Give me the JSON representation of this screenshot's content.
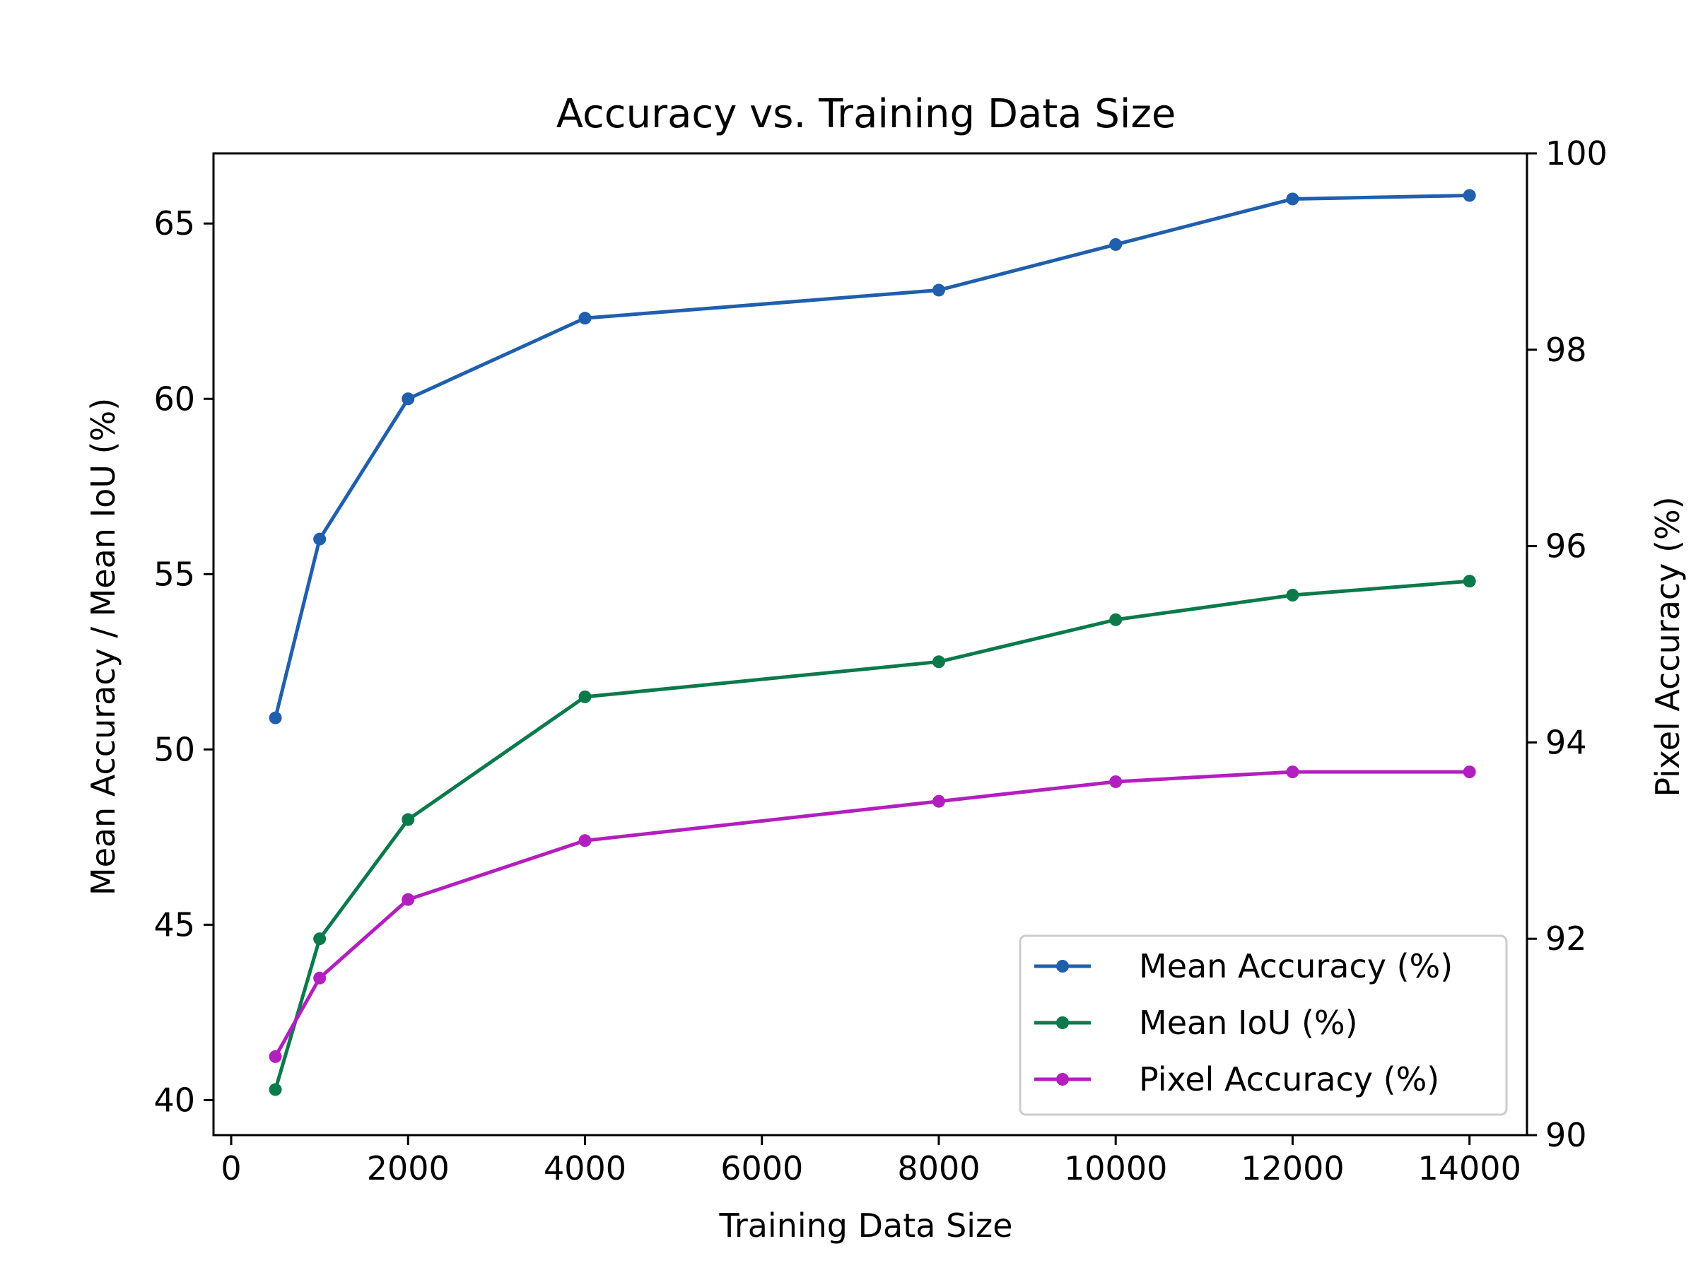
{
  "chart_data": {
    "type": "line",
    "title": "Accuracy vs. Training Data Size",
    "xlabel": "Training Data Size",
    "ylabel": "Mean Accuracy / Mean IoU (%)",
    "y2label": "Pixel Accuracy (%)",
    "xlim": [
      -200,
      14650
    ],
    "ylim": [
      39.0,
      67.0
    ],
    "y2lim": [
      90,
      100
    ],
    "xticks": [
      0,
      2000,
      4000,
      6000,
      8000,
      10000,
      12000,
      14000
    ],
    "yticks": [
      40,
      45,
      50,
      55,
      60,
      65
    ],
    "y2ticks": [
      90,
      92,
      94,
      96,
      98,
      100
    ],
    "grid": false,
    "legend_position": "lower-right",
    "x": [
      500,
      1000,
      2000,
      4000,
      8000,
      10000,
      12000,
      14000
    ],
    "series": [
      {
        "name": "Mean Accuracy (%)",
        "axis": "left",
        "color": "#1f5fae",
        "values": [
          50.9,
          56.0,
          60.0,
          62.3,
          63.1,
          64.4,
          65.7,
          65.8
        ]
      },
      {
        "name": "Mean IoU (%)",
        "axis": "left",
        "color": "#0b7a4b",
        "values": [
          40.3,
          44.6,
          48.0,
          51.5,
          52.5,
          53.7,
          54.4,
          54.8
        ]
      },
      {
        "name": "Pixel Accuracy (%)",
        "axis": "right",
        "color": "#b31fbf",
        "values": [
          90.8,
          91.6,
          92.4,
          93.0,
          93.4,
          93.6,
          93.7,
          93.7
        ]
      }
    ]
  }
}
